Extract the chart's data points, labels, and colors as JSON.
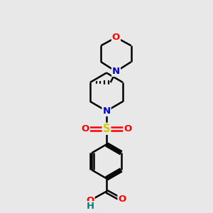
{
  "bg_color": "#e8e8e8",
  "bond_color": "#000000",
  "bond_width": 1.8,
  "atom_colors": {
    "O": "#ff0000",
    "N": "#0000cd",
    "S": "#cccc00",
    "H": "#008080"
  },
  "font_size": 9.5
}
